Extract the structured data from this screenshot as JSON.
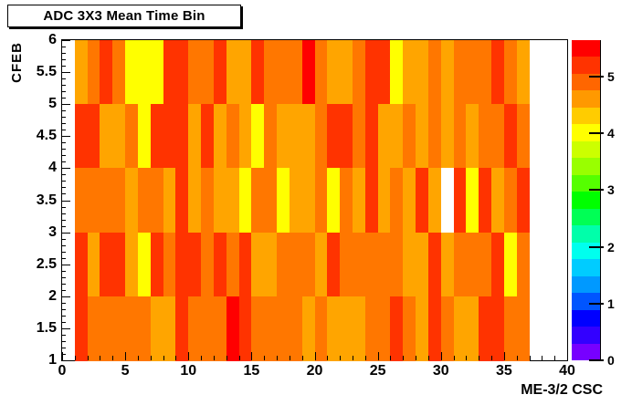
{
  "title": "ADC 3X3 Mean Time Bin",
  "axes": {
    "x_title": "ME-3/2 CSC",
    "y_title": "CFEB",
    "x_tick_values": [
      0,
      5,
      10,
      15,
      20,
      25,
      30,
      35,
      40
    ],
    "x_tick_labels": [
      "0",
      "5",
      "10",
      "15",
      "20",
      "25",
      "30",
      "35",
      "40"
    ],
    "y_tick_values": [
      1,
      1.5,
      2,
      2.5,
      3,
      3.5,
      4,
      4.5,
      5,
      5.5,
      6
    ],
    "y_tick_labels": [
      "1",
      "1.5",
      "2",
      "2.5",
      "3",
      "3.5",
      "4",
      "4.5",
      "5",
      "5.5",
      "6"
    ],
    "z_tick_values": [
      0,
      1,
      2,
      3,
      4,
      5
    ],
    "z_tick_labels": [
      "0",
      "1",
      "2",
      "3",
      "4",
      "5"
    ]
  },
  "palette": {
    "Y": "#FFFF00",
    "A": "#FFA500",
    "O": "#FF7700",
    "R": "#FF3300",
    "F": "#FF0000",
    "W": "#FFFFFF"
  },
  "colorbar_bands_bottom_to_top": [
    "#7700FF",
    "#3300FF",
    "#0000FF",
    "#0055FF",
    "#0099FF",
    "#00CCFF",
    "#00FFEE",
    "#00FFAA",
    "#00FF55",
    "#00FF00",
    "#55FF00",
    "#99FF00",
    "#CCFF00",
    "#FFFF00",
    "#FFCC00",
    "#FF9900",
    "#FF6600",
    "#FF3300",
    "#FF0000"
  ],
  "chart_data": {
    "type": "heatmap",
    "title": "ADC 3X3 Mean Time Bin",
    "xlabel": "ME-3/2 CSC",
    "ylabel": "CFEB",
    "xlim": [
      0,
      40
    ],
    "ylim": [
      1,
      6
    ],
    "zlim": [
      0,
      5.64
    ],
    "grid": "off",
    "legend": "color scale bar on right, ticks 0-5, rainbow palette (violet=0 to red=5.64)",
    "bins_note": "36 CSC columns occupying x=1..37 (x=0-1 and x=37-40 empty/white); 5 CFEB rows of height 1 from y=1 to y=6; rows listed top (CFEB 5-6) to bottom (CFEB 1-2); cell codes map to approximate values via value_map",
    "value_map": {
      "Y": 4.2,
      "A": 4.7,
      "O": 5.0,
      "R": 5.3,
      "F": 5.55,
      "W": null
    },
    "rows": [
      {
        "cfeb_range": "5-6",
        "cells": "AOROYYYRROORAAROOOFOAAORRYAAOAOOOROA"
      },
      {
        "cfeb_range": "4-5",
        "cells": "RRAAOYRRRARAOAYOAAAORRORAAOAOAOAOORO"
      },
      {
        "cfeb_range": "3-4",
        "cells": "OOOOAOOARAOAAYOOYAAOYOARAOARAWRYRAOR"
      },
      {
        "cfeb_range": "2-3",
        "cells": "RARRAYRORRORORAAOOOAROOOOOAARAOOORYO"
      },
      {
        "cfeb_range": "1-2",
        "cells": "ROOOOOAAROOOFROOOOAOAAAOOROAROAARROO"
      }
    ]
  }
}
